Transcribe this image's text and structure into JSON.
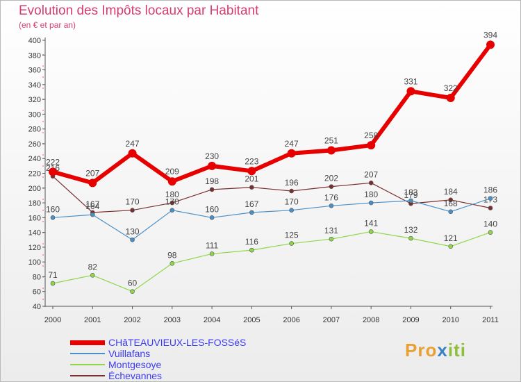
{
  "title": "Evolution des Impôts locaux par Habitant",
  "subtitle": "(en € et par an)",
  "logo": {
    "parts": [
      "Pro",
      "x",
      "iti"
    ],
    "colors": [
      "#e8a030",
      "#3b82c4",
      "#8fbf3a"
    ]
  },
  "chart_data": {
    "type": "line",
    "title": "Evolution des Impôts locaux par Habitant",
    "subtitle": "(en € et par an)",
    "xlabel": "",
    "ylabel": "",
    "ylim": [
      40,
      400
    ],
    "ytick_step": 20,
    "grid": false,
    "legend_position": "bottom-left",
    "categories": [
      "2000",
      "2001",
      "2002",
      "2003",
      "2004",
      "2005",
      "2006",
      "2007",
      "2008",
      "2009",
      "2010",
      "2011"
    ],
    "series": [
      {
        "name": "CHâTEAUVIEUX-LES-FOSSéS",
        "color": "#e60000",
        "values": [
          222,
          207,
          247,
          209,
          230,
          223,
          247,
          251,
          258,
          331,
          322,
          394
        ]
      },
      {
        "name": "Vuillafans",
        "color": "#4a90c8",
        "values": [
          160,
          164,
          130,
          170,
          160,
          167,
          170,
          176,
          180,
          183,
          168,
          186
        ]
      },
      {
        "name": "Montgesoye",
        "color": "#8fd64a",
        "values": [
          71,
          82,
          60,
          98,
          111,
          116,
          125,
          131,
          141,
          132,
          121,
          140
        ]
      },
      {
        "name": "Échevannes",
        "color": "#7a2f2f",
        "values": [
          216,
          167,
          170,
          180,
          198,
          201,
          196,
          202,
          207,
          179,
          184,
          173
        ]
      }
    ]
  }
}
